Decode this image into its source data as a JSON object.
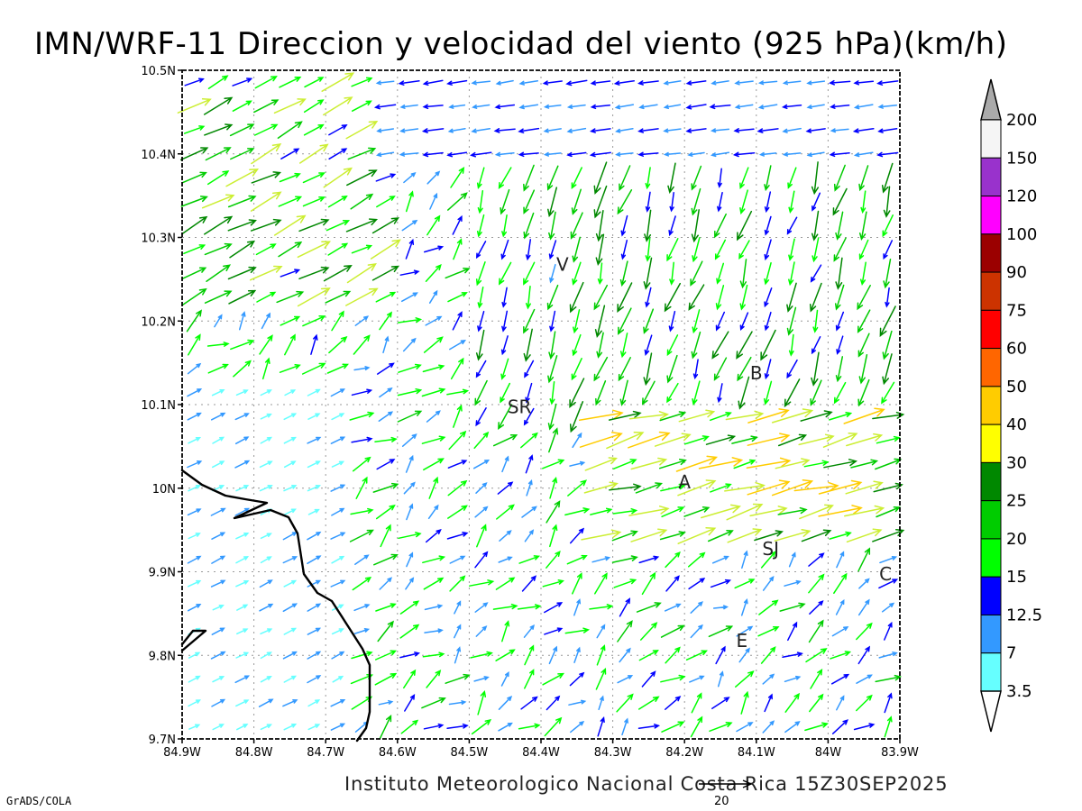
{
  "title": "IMN/WRF-11 Direccion y velocidad del viento (925 hPa)(km/h)",
  "footer": "Instituto Meteorologico Nacional Costa Rica 15Z30SEP2025",
  "credit": "GrADS/COLA",
  "reference_vector": {
    "label": "20",
    "value": 20
  },
  "axes": {
    "x_ticks": [
      "84.9W",
      "84.8W",
      "84.7W",
      "84.6W",
      "84.5W",
      "84.4W",
      "84.3W",
      "84.2W",
      "84.1W",
      "84W",
      "83.9W"
    ],
    "y_ticks": [
      "10.5N",
      "10.4N",
      "10.3N",
      "10.2N",
      "10.1N",
      "10N",
      "9.9N",
      "9.8N",
      "9.7N"
    ],
    "lon_range": [
      -84.9,
      -83.9
    ],
    "lat_range": [
      9.7,
      10.5
    ]
  },
  "stations": [
    {
      "label": "V",
      "lon": -84.37,
      "lat": 10.26
    },
    {
      "label": "SR",
      "lon": -84.43,
      "lat": 10.09
    },
    {
      "label": "B",
      "lon": -84.1,
      "lat": 10.13
    },
    {
      "label": "A",
      "lon": -84.2,
      "lat": 10.0
    },
    {
      "label": "SJ",
      "lon": -84.08,
      "lat": 9.92
    },
    {
      "label": "C",
      "lon": -83.92,
      "lat": 9.89
    },
    {
      "label": "E",
      "lon": -84.12,
      "lat": 9.81
    }
  ],
  "legend": {
    "labels": [
      "200",
      "150",
      "120",
      "100",
      "90",
      "75",
      "60",
      "50",
      "40",
      "30",
      "25",
      "20",
      "15",
      "12.5",
      "7",
      "3.5"
    ],
    "colors": [
      "#f5f5f5",
      "#9932cc",
      "#ff00ff",
      "#9b0000",
      "#cc3300",
      "#ff0000",
      "#ff6600",
      "#ffcc00",
      "#ffff00",
      "#008800",
      "#00cc00",
      "#00ff00",
      "#0000ff",
      "#3399ff",
      "#66ffff"
    ],
    "top_cap_color": "#aaaaaa",
    "bottom_cap_color": "#ffffff"
  }
}
